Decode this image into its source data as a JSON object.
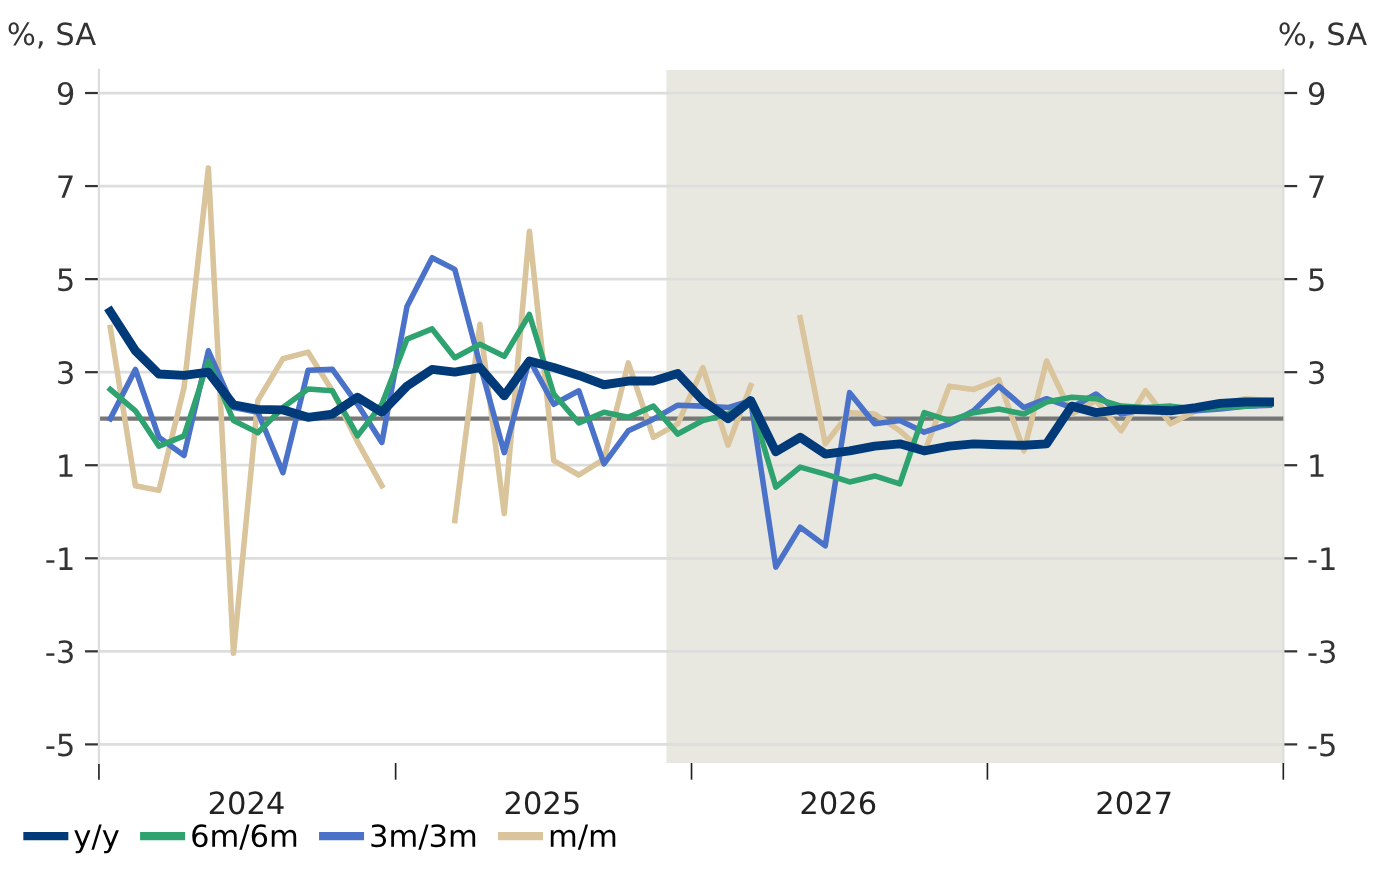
{
  "chart_data": {
    "type": "line",
    "ylabel": "%, SA",
    "y2label": "%, SA",
    "x": [
      "2024-01-15",
      "2024-02-15",
      "2024-03-15",
      "2024-04-15",
      "2024-05-15",
      "2024-06-15",
      "2024-07-15",
      "2024-08-15",
      "2024-09-15",
      "2024-10-15",
      "2024-11-15",
      "2024-12-15",
      "2025-01-15",
      "2025-02-15",
      "2025-03-15",
      "2025-04-15",
      "2025-05-15",
      "2025-06-15",
      "2025-07-15",
      "2025-08-15",
      "2025-09-15",
      "2025-10-15",
      "2025-11-15",
      "2025-12-15",
      "2026-01-15",
      "2026-02-15",
      "2026-03-15",
      "2026-04-15",
      "2026-05-15",
      "2026-06-15",
      "2026-07-15",
      "2026-08-15",
      "2026-09-15",
      "2026-10-15",
      "2026-11-15",
      "2026-12-15",
      "2027-01-15",
      "2027-02-15",
      "2027-03-15",
      "2027-04-15",
      "2027-05-15",
      "2027-06-15",
      "2027-07-15",
      "2027-08-15",
      "2027-09-15",
      "2027-10-15",
      "2027-11-15",
      "2027-12-15"
    ],
    "series": [
      {
        "name": "y/y",
        "color": "#003a78",
        "values": [
          4.3,
          3.46,
          2.96,
          2.93,
          3.0,
          2.3,
          2.2,
          2.19,
          2.03,
          2.1,
          2.46,
          2.14,
          2.7,
          3.06,
          3.0,
          3.1,
          2.49,
          3.24,
          3.1,
          2.93,
          2.73,
          2.81,
          2.81,
          2.97,
          2.39,
          2.0,
          2.39,
          1.29,
          1.6,
          1.24,
          1.31,
          1.41,
          1.46,
          1.31,
          1.41,
          1.46,
          1.44,
          1.43,
          1.46,
          2.27,
          2.13,
          2.2,
          2.19,
          2.17,
          2.24,
          2.33,
          2.36,
          2.36
        ]
      },
      {
        "name": "6m/6m",
        "color": "#2ea36f",
        "values": [
          2.63,
          2.17,
          1.41,
          1.63,
          3.24,
          1.96,
          1.7,
          2.24,
          2.64,
          2.6,
          1.63,
          2.31,
          3.71,
          3.93,
          3.31,
          3.6,
          3.34,
          4.24,
          2.53,
          1.91,
          2.14,
          2.03,
          2.27,
          1.67,
          1.96,
          2.1,
          2.36,
          0.53,
          0.96,
          0.81,
          0.64,
          0.77,
          0.6,
          2.13,
          1.96,
          2.13,
          2.21,
          2.1,
          2.36,
          2.46,
          2.43,
          2.27,
          2.24,
          2.27,
          2.21,
          2.24,
          2.27,
          2.31
        ]
      },
      {
        "name": "3m/3m",
        "color": "#4a72c8",
        "values": [
          2.0,
          3.06,
          1.6,
          1.21,
          3.46,
          2.24,
          2.14,
          0.84,
          3.04,
          3.06,
          2.31,
          1.49,
          4.41,
          5.46,
          5.21,
          3.17,
          1.27,
          3.27,
          2.31,
          2.6,
          1.03,
          1.74,
          1.99,
          2.29,
          2.27,
          2.24,
          2.39,
          -1.19,
          -0.33,
          -0.73,
          2.56,
          1.89,
          1.96,
          1.71,
          1.89,
          2.17,
          2.7,
          2.24,
          2.43,
          2.24,
          2.53,
          2.1,
          2.21,
          2.17,
          2.17,
          2.21,
          2.27,
          2.29
        ]
      },
      {
        "name": "m/m",
        "color": "#d9c49b",
        "values": [
          3.96,
          0.56,
          0.46,
          2.67,
          7.39,
          -3.04,
          2.39,
          3.29,
          3.43,
          2.6,
          1.5,
          0.56,
          null,
          null,
          -0.19,
          4.03,
          -0.04,
          6.03,
          1.1,
          0.79,
          1.13,
          3.2,
          1.6,
          1.89,
          3.1,
          1.43,
          2.71,
          null,
          4.17,
          1.46,
          2.13,
          2.1,
          1.74,
          1.27,
          2.7,
          2.63,
          2.84,
          1.31,
          3.24,
          2.1,
          2.39,
          1.74,
          2.6,
          1.89,
          2.17,
          2.31,
          2.43,
          2.39
        ]
      }
    ],
    "xlim": [
      "2024-01-01",
      "2028-01-01"
    ],
    "xticks": [
      {
        "value": "2024-01-01",
        "label": null
      },
      {
        "value": "2024-07-01",
        "label": "2024"
      },
      {
        "value": "2025-01-01",
        "label": null
      },
      {
        "value": "2025-07-01",
        "label": "2025"
      },
      {
        "value": "2026-01-01",
        "label": null
      },
      {
        "value": "2026-07-01",
        "label": "2026"
      },
      {
        "value": "2027-01-01",
        "label": null
      },
      {
        "value": "2027-07-01",
        "label": "2027"
      },
      {
        "value": "2028-01-01",
        "label": null
      }
    ],
    "ylim": [
      -5.4,
      9.5
    ],
    "yticks": [
      -5,
      -3,
      -1,
      1,
      3,
      5,
      7,
      9
    ],
    "y2lim": [
      -5.4,
      9.5
    ],
    "y2ticks": [
      -5,
      -3,
      -1,
      1,
      3,
      5,
      7,
      9
    ],
    "bands": [
      {
        "axis": "x",
        "from": "2025-12-01",
        "to": "2028-01-01",
        "color": "#e8e8e1"
      }
    ],
    "ref_lines": [
      {
        "axis": "y",
        "value": 2,
        "color": "#777777"
      }
    ],
    "grid": "y",
    "legend": "bottom left",
    "marker": "none",
    "line_style": "solid"
  }
}
